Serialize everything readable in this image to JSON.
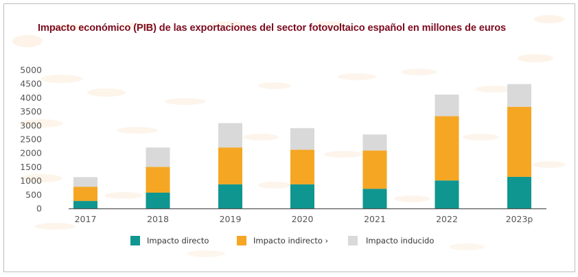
{
  "chart_data": {
    "type": "bar",
    "stacked": true,
    "title": "Impacto económico (PIB) de las exportaciones del sector fotovoltaico español en millones de euros",
    "xlabel": "",
    "ylabel": "",
    "ylim": [
      0,
      5000
    ],
    "yticks": [
      0,
      500,
      1000,
      1500,
      2000,
      2500,
      3000,
      3500,
      4000,
      4500,
      5000
    ],
    "grid": false,
    "legend_position": "bottom",
    "categories": [
      "2017",
      "2018",
      "2019",
      "2020",
      "2021",
      "2022",
      "2023p"
    ],
    "series": [
      {
        "name": "Impacto directo",
        "color": "#0f9690",
        "values": [
          270,
          570,
          870,
          870,
          710,
          1010,
          1140
        ]
      },
      {
        "name": "Impacto indirecto",
        "color": "#f5a623",
        "values": [
          510,
          930,
          1330,
          1250,
          1380,
          2320,
          2530
        ]
      },
      {
        "name": "Impacto inducido",
        "color": "#d9d9d9",
        "values": [
          350,
          700,
          880,
          780,
          580,
          780,
          820
        ]
      }
    ],
    "totals": [
      1130,
      2200,
      3080,
      2900,
      2670,
      4110,
      4490
    ]
  },
  "legend": {
    "items": [
      {
        "label": "Impacto directo",
        "color": "#0f9690"
      },
      {
        "label": "Impacto indirecto ›",
        "color": "#f5a623"
      },
      {
        "label": "Impacto inducido",
        "color": "#d9d9d9"
      }
    ]
  }
}
